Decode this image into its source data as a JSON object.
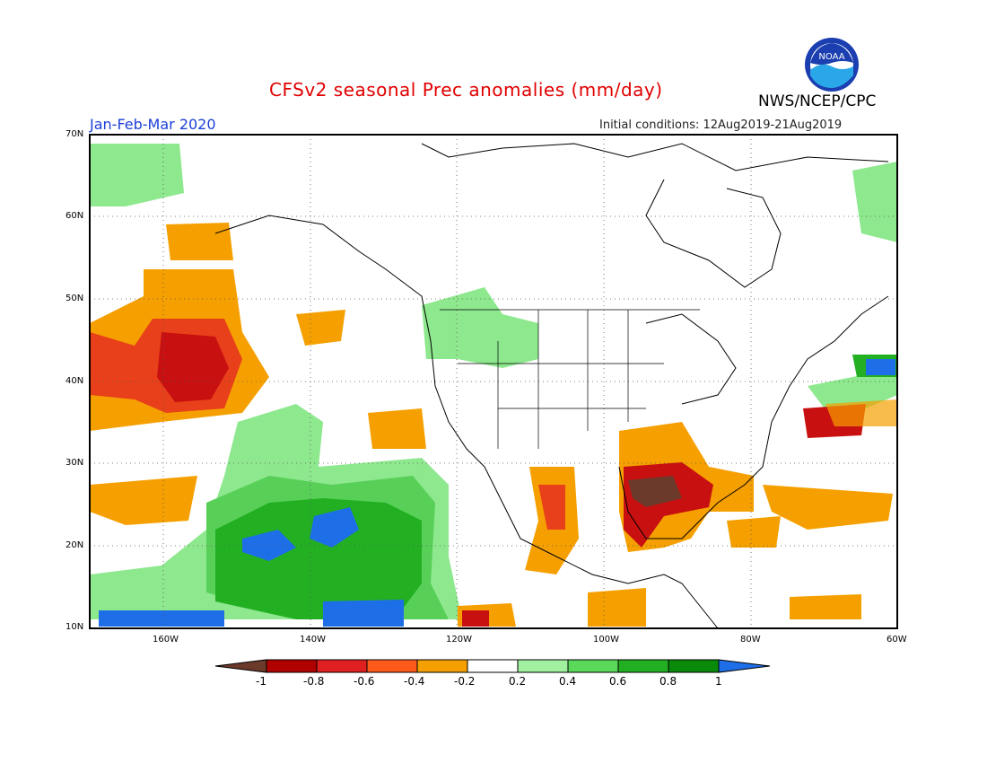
{
  "header": {
    "title": "CFSv2 seasonal Prec anomalies (mm/day)",
    "subtitle": "Jan-Feb-Mar 2020",
    "initial_conditions": "Initial conditions: 12Aug2019-21Aug2019",
    "agency": "NWS/NCEP/CPC",
    "logo_text": "NOAA"
  },
  "axes": {
    "lat_labels": [
      "70N",
      "60N",
      "50N",
      "40N",
      "30N",
      "20N",
      "10N"
    ],
    "lon_labels": [
      "160W",
      "140W",
      "120W",
      "100W",
      "80W",
      "60W"
    ]
  },
  "colorbar": {
    "labels": [
      "-1",
      "-0.8",
      "-0.6",
      "-0.4",
      "-0.2",
      "0.2",
      "0.4",
      "0.6",
      "0.8",
      "1"
    ],
    "colors": [
      "#6b3a2a",
      "#b00000",
      "#e02020",
      "#ff5a1a",
      "#f5a000",
      "#ffffff",
      "#a0f0a0",
      "#5ad85a",
      "#22b022",
      "#0a8a0a",
      "#1e6ee8"
    ]
  },
  "colors": {
    "title": "#e00000",
    "subtitle": "#1a3fd8"
  }
}
